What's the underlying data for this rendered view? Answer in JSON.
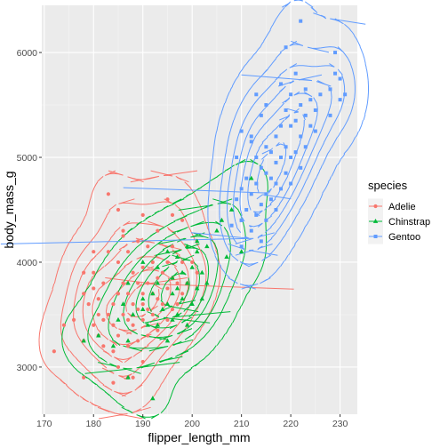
{
  "chart_data": {
    "type": "scatter",
    "xlabel": "flipper_length_mm",
    "ylabel": "body_mass_g",
    "xlim": [
      169.5,
      233.5
    ],
    "ylim": [
      2550,
      6450
    ],
    "x_ticks": [
      170,
      180,
      190,
      200,
      210,
      220,
      230
    ],
    "y_ticks": [
      3000,
      4000,
      5000,
      6000
    ],
    "minor_x": [
      175,
      185,
      195,
      205,
      215,
      225
    ],
    "minor_y": [
      3500,
      4500,
      5500
    ],
    "grid": true,
    "legend": {
      "title": "species",
      "position": "right",
      "entries": [
        "Adelie",
        "Chinstrap",
        "Gentoo"
      ]
    },
    "series": [
      {
        "name": "Adelie",
        "color": "#F8766D",
        "marker": "circle",
        "points": [
          [
            172,
            3150
          ],
          [
            174,
            3400
          ],
          [
            176,
            3450
          ],
          [
            178,
            3250
          ],
          [
            178,
            2900
          ],
          [
            178,
            3700
          ],
          [
            178,
            3900
          ],
          [
            179,
            3600
          ],
          [
            180,
            3400
          ],
          [
            180,
            3750
          ],
          [
            180,
            3900
          ],
          [
            180,
            4100
          ],
          [
            181,
            3300
          ],
          [
            181,
            3500
          ],
          [
            181,
            3650
          ],
          [
            182,
            3200
          ],
          [
            182,
            3450
          ],
          [
            182,
            3800
          ],
          [
            183,
            3500
          ],
          [
            183,
            4100
          ],
          [
            184,
            3150
          ],
          [
            184,
            3400
          ],
          [
            184,
            3600
          ],
          [
            185,
            3000
          ],
          [
            185,
            3300
          ],
          [
            185,
            3700
          ],
          [
            185,
            4000
          ],
          [
            186,
            3500
          ],
          [
            186,
            3800
          ],
          [
            186,
            4300
          ],
          [
            187,
            2900
          ],
          [
            187,
            3200
          ],
          [
            187,
            3450
          ],
          [
            187,
            3700
          ],
          [
            187,
            4100
          ],
          [
            188,
            3400
          ],
          [
            188,
            3600
          ],
          [
            188,
            3900
          ],
          [
            189,
            3250
          ],
          [
            189,
            3550
          ],
          [
            189,
            3800
          ],
          [
            189,
            4200
          ],
          [
            190,
            3050
          ],
          [
            190,
            3450
          ],
          [
            190,
            3600
          ],
          [
            190,
            3700
          ],
          [
            190,
            3950
          ],
          [
            191,
            3300
          ],
          [
            191,
            3550
          ],
          [
            191,
            3800
          ],
          [
            191,
            4150
          ],
          [
            192,
            3500
          ],
          [
            192,
            3700
          ],
          [
            192,
            4000
          ],
          [
            193,
            3350
          ],
          [
            193,
            3650
          ],
          [
            193,
            3850
          ],
          [
            193,
            4300
          ],
          [
            194,
            3600
          ],
          [
            194,
            3900
          ],
          [
            195,
            3450
          ],
          [
            195,
            3750
          ],
          [
            195,
            4000
          ],
          [
            196,
            3550
          ],
          [
            196,
            3850
          ],
          [
            196,
            4150
          ],
          [
            197,
            3600
          ],
          [
            197,
            3800
          ],
          [
            198,
            3700
          ],
          [
            198,
            4000
          ],
          [
            198,
            4400
          ],
          [
            199,
            3800
          ],
          [
            200,
            4000
          ],
          [
            201,
            3900
          ],
          [
            183,
            4650
          ],
          [
            185,
            4500
          ],
          [
            190,
            4450
          ],
          [
            195,
            4600
          ],
          [
            186,
            4250
          ],
          [
            196,
            4450
          ],
          [
            184,
            2850
          ],
          [
            188,
            2900
          ]
        ]
      },
      {
        "name": "Chinstrap",
        "color": "#00BA38",
        "marker": "triangle",
        "points": [
          [
            178,
            3250
          ],
          [
            181,
            3300
          ],
          [
            185,
            3450
          ],
          [
            186,
            3600
          ],
          [
            187,
            3250
          ],
          [
            187,
            3800
          ],
          [
            188,
            3500
          ],
          [
            190,
            3550
          ],
          [
            190,
            3650
          ],
          [
            190,
            4000
          ],
          [
            191,
            3400
          ],
          [
            192,
            2700
          ],
          [
            192,
            3700
          ],
          [
            193,
            3400
          ],
          [
            193,
            3800
          ],
          [
            193,
            3950
          ],
          [
            194,
            3550
          ],
          [
            195,
            3250
          ],
          [
            195,
            3600
          ],
          [
            195,
            4100
          ],
          [
            196,
            3450
          ],
          [
            196,
            3700
          ],
          [
            196,
            3850
          ],
          [
            197,
            3500
          ],
          [
            197,
            3750
          ],
          [
            197,
            4050
          ],
          [
            198,
            3650
          ],
          [
            198,
            3900
          ],
          [
            199,
            3400
          ],
          [
            199,
            3800
          ],
          [
            199,
            4150
          ],
          [
            200,
            3600
          ],
          [
            200,
            3950
          ],
          [
            201,
            3750
          ],
          [
            201,
            4100
          ],
          [
            201,
            4200
          ],
          [
            202,
            3650
          ],
          [
            202,
            3900
          ],
          [
            203,
            3800
          ],
          [
            203,
            4150
          ],
          [
            205,
            4300
          ],
          [
            206,
            4400
          ],
          [
            207,
            4050
          ],
          [
            208,
            4500
          ],
          [
            210,
            4100
          ],
          [
            212,
            4800
          ],
          [
            187,
            2900
          ],
          [
            184,
            3200
          ]
        ]
      },
      {
        "name": "Gentoo",
        "color": "#619CFF",
        "marker": "square",
        "points": [
          [
            208,
            4350
          ],
          [
            209,
            4600
          ],
          [
            209,
            5000
          ],
          [
            210,
            4150
          ],
          [
            210,
            4400
          ],
          [
            210,
            4700
          ],
          [
            210,
            5250
          ],
          [
            211,
            4500
          ],
          [
            211,
            4800
          ],
          [
            212,
            4300
          ],
          [
            212,
            4650
          ],
          [
            212,
            5150
          ],
          [
            213,
            4450
          ],
          [
            213,
            4750
          ],
          [
            213,
            5000
          ],
          [
            214,
            4200
          ],
          [
            214,
            4550
          ],
          [
            214,
            4900
          ],
          [
            214,
            5400
          ],
          [
            215,
            4400
          ],
          [
            215,
            4650
          ],
          [
            215,
            4850
          ],
          [
            215,
            5100
          ],
          [
            215,
            5500
          ],
          [
            216,
            4600
          ],
          [
            216,
            4800
          ],
          [
            216,
            5050
          ],
          [
            217,
            4500
          ],
          [
            217,
            4750
          ],
          [
            217,
            4950
          ],
          [
            217,
            5200
          ],
          [
            218,
            4700
          ],
          [
            218,
            5000
          ],
          [
            218,
            5300
          ],
          [
            218,
            5700
          ],
          [
            219,
            4850
          ],
          [
            219,
            5100
          ],
          [
            219,
            5450
          ],
          [
            220,
            4750
          ],
          [
            220,
            5000
          ],
          [
            220,
            5300
          ],
          [
            220,
            5600
          ],
          [
            221,
            5050
          ],
          [
            221,
            5350
          ],
          [
            221,
            5800
          ],
          [
            222,
            4900
          ],
          [
            222,
            5200
          ],
          [
            222,
            5500
          ],
          [
            222,
            6300
          ],
          [
            223,
            5100
          ],
          [
            223,
            5400
          ],
          [
            223,
            5650
          ],
          [
            224,
            5300
          ],
          [
            224,
            5550
          ],
          [
            225,
            5250
          ],
          [
            225,
            5450
          ],
          [
            226,
            5600
          ],
          [
            228,
            5400
          ],
          [
            228,
            5650
          ],
          [
            229,
            5800
          ],
          [
            229,
            6000
          ],
          [
            230,
            5550
          ],
          [
            230,
            5750
          ],
          [
            231,
            5600
          ],
          [
            219,
            6050
          ],
          [
            213,
            5600
          ],
          [
            212,
            5200
          ],
          [
            210,
            4400
          ]
        ]
      }
    ]
  }
}
